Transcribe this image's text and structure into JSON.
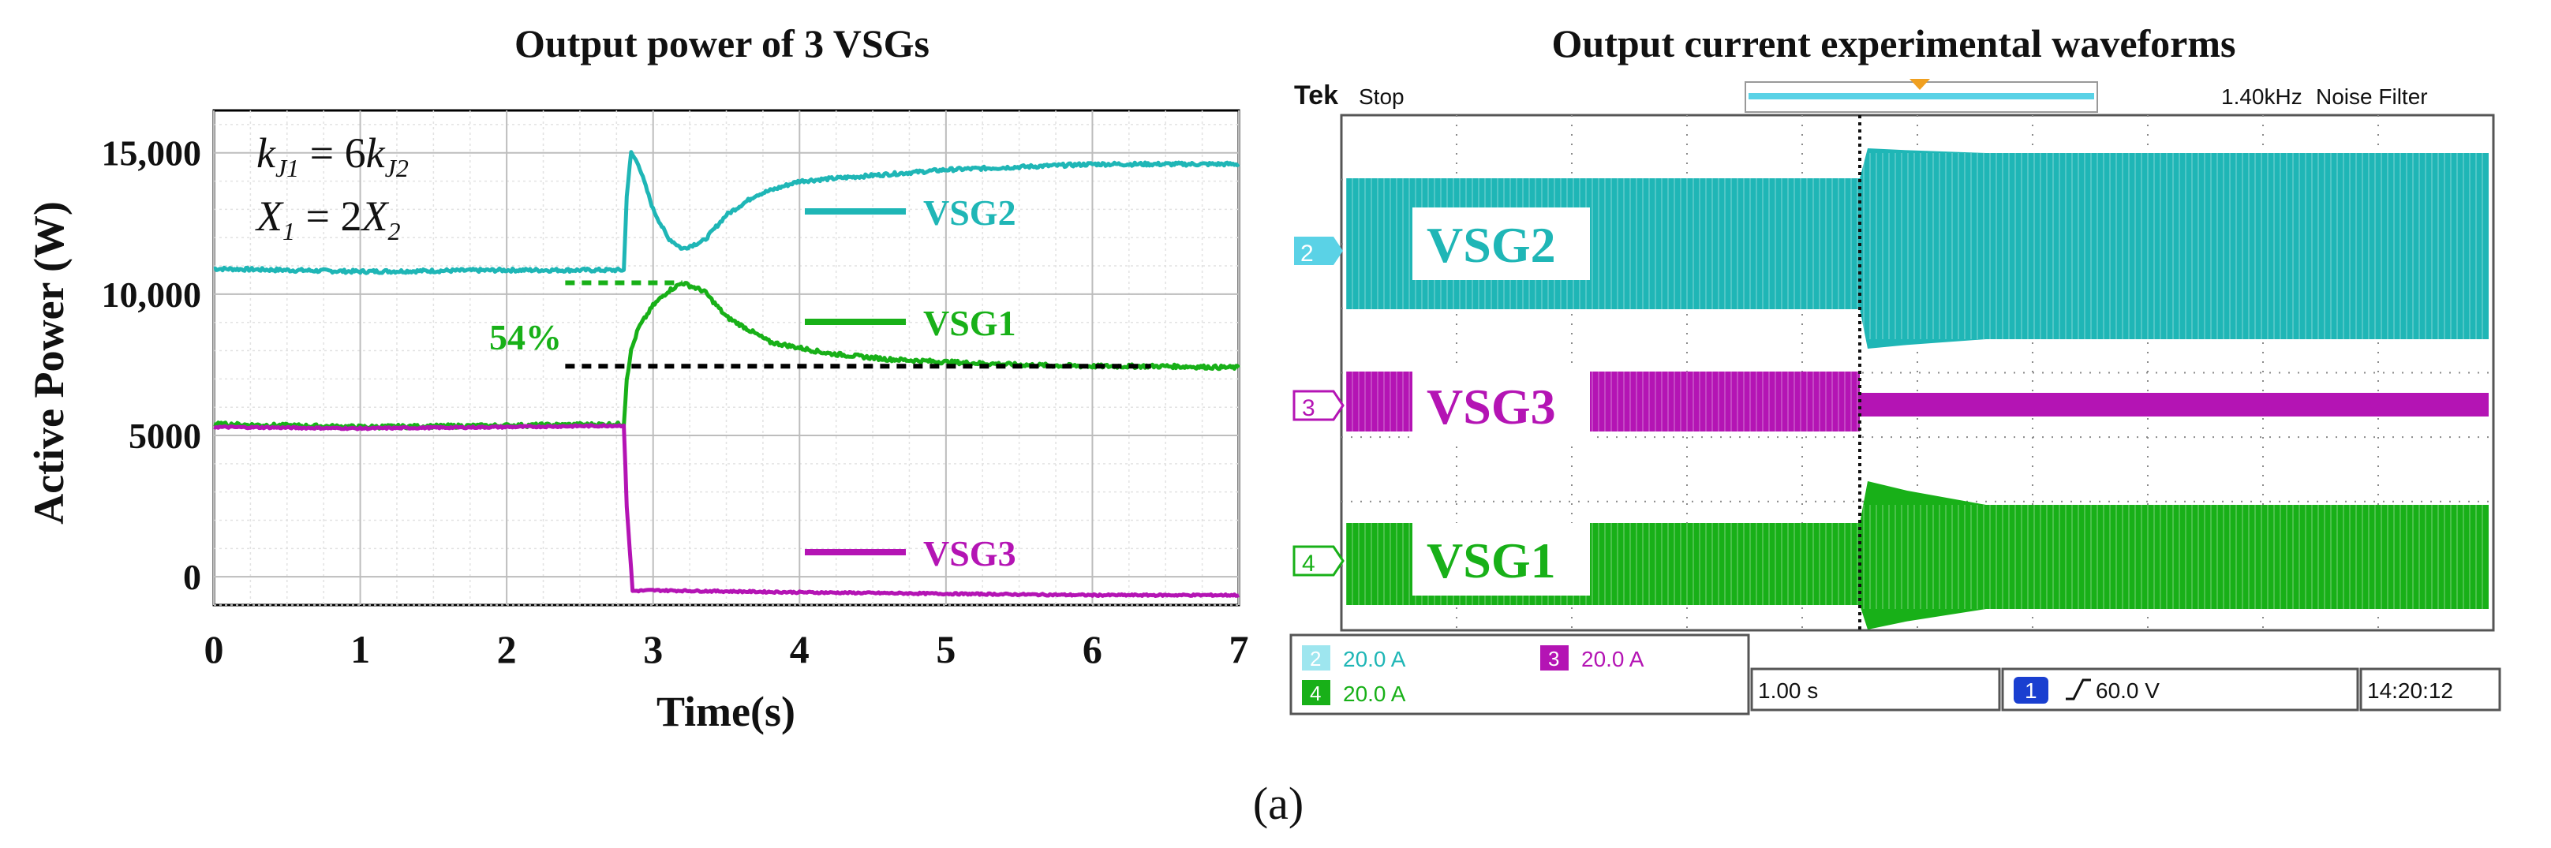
{
  "figure_caption": "(a)",
  "colors": {
    "vsg1": "#18b018",
    "vsg2": "#1fb6b6",
    "vsg3": "#b414b4",
    "grid": "#cfcfcf",
    "scope_bg": "#ffffff",
    "scope_grid": "#7a7a7a"
  },
  "chart_data": [
    {
      "type": "line",
      "title": "Output power of 3 VSGs",
      "xlabel": "Time(s)",
      "ylabel": "Active Power (W)",
      "xlim": [
        0,
        7
      ],
      "ylim": [
        -1000,
        16500
      ],
      "x_ticks": [
        0,
        1,
        2,
        3,
        4,
        5,
        6,
        7
      ],
      "x_tick_labels": [
        "0",
        "1",
        "2",
        "3",
        "4",
        "5",
        "6",
        "7"
      ],
      "y_ticks": [
        0,
        5000,
        10000,
        15000
      ],
      "y_tick_labels": [
        "0",
        "5000",
        "10,000",
        "15,000"
      ],
      "grid": true,
      "annotations": {
        "eq1": {
          "lhs": "k",
          "lhs_sub": "J1",
          "rel": " = 6",
          "rhs": "k",
          "rhs_sub": "J2"
        },
        "eq2": {
          "lhs": "X",
          "lhs_sub": "1",
          "rel": " = 2",
          "rhs": "X",
          "rhs_sub": "2"
        },
        "percent_label": "54%",
        "reference_line_level": 7450,
        "peak_marker_level": 10400
      },
      "series": [
        {
          "name": "VSG2",
          "color": "#1fb6b6",
          "x": [
            0,
            1,
            2,
            2.8,
            2.82,
            2.85,
            2.9,
            3.0,
            3.1,
            3.2,
            3.35,
            3.5,
            3.7,
            4.0,
            4.5,
            5.0,
            5.5,
            6.0,
            6.5,
            7.0
          ],
          "y": [
            10900,
            10800,
            10850,
            10850,
            13500,
            15000,
            14600,
            13000,
            12000,
            11600,
            11900,
            12800,
            13500,
            14000,
            14200,
            14400,
            14500,
            14600,
            14600,
            14600
          ]
        },
        {
          "name": "VSG1",
          "color": "#18b018",
          "x": [
            0,
            1,
            2,
            2.8,
            2.82,
            2.85,
            2.9,
            3.0,
            3.1,
            3.2,
            3.35,
            3.5,
            3.8,
            4.2,
            4.6,
            5.0,
            5.5,
            6.0,
            6.5,
            7.0
          ],
          "y": [
            5400,
            5300,
            5350,
            5400,
            7000,
            8000,
            8800,
            9600,
            10100,
            10400,
            10100,
            9200,
            8300,
            7900,
            7700,
            7600,
            7500,
            7450,
            7450,
            7400
          ]
        },
        {
          "name": "VSG3",
          "color": "#b414b4",
          "x": [
            0,
            1,
            2,
            2.8,
            2.82,
            2.86,
            3.0,
            4.0,
            5.0,
            6.0,
            7.0
          ],
          "y": [
            5300,
            5250,
            5300,
            5350,
            2500,
            -500,
            -480,
            -550,
            -600,
            -650,
            -650
          ]
        }
      ],
      "legend": [
        {
          "label": "VSG2",
          "color": "#1fb6b6"
        },
        {
          "label": "VSG1",
          "color": "#18b018"
        },
        {
          "label": "VSG3",
          "color": "#b414b4"
        }
      ]
    },
    {
      "type": "oscilloscope",
      "title": "Output current experimental waveforms",
      "header": {
        "brand": "Tek",
        "state": "Stop",
        "freq": "1.40kHz",
        "filter": "Noise Filter"
      },
      "channels": [
        {
          "id": "2",
          "label": "VSG2",
          "scale": "20.0 A",
          "color": "#1fb6b6"
        },
        {
          "id": "3",
          "label": "VSG3",
          "scale": "20.0 A",
          "color": "#b414b4"
        },
        {
          "id": "4",
          "label": "VSG1",
          "scale": "20.0 A",
          "color": "#18b018"
        }
      ],
      "timebase": "1.00 s",
      "trigger": {
        "channel": "1",
        "level": "60.0 V"
      },
      "clock": "14:20:12",
      "divisions": {
        "x": 10,
        "y": 8
      },
      "event_division": 4.5
    }
  ]
}
